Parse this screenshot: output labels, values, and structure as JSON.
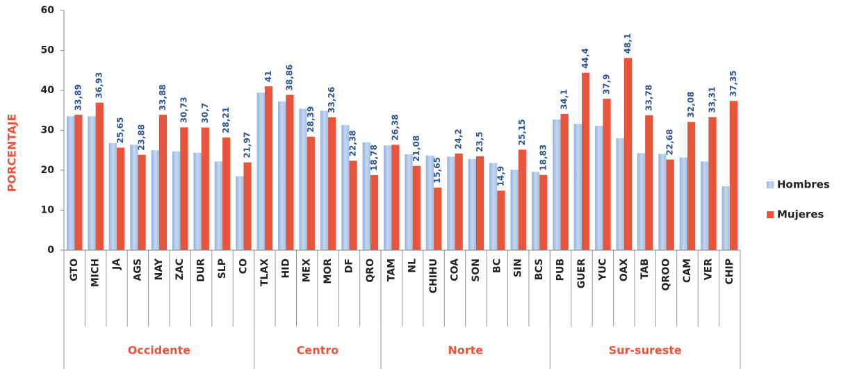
{
  "chart_data": {
    "type": "bar",
    "y_label": "PORCENTAJE",
    "groups": [
      {
        "name": "Occidente",
        "categories": [
          "GTO",
          "MICH",
          "JA",
          "AGS",
          "NAY",
          "ZAC",
          "DUR",
          "SLP",
          "CO"
        ]
      },
      {
        "name": "Centro",
        "categories": [
          "TLAX",
          "HID",
          "MEX",
          "MOR",
          "DF",
          "QRO"
        ]
      },
      {
        "name": "Norte",
        "categories": [
          "TAM",
          "NL",
          "CHIHU",
          "COA",
          "SON",
          "BC",
          "SIN",
          "BCS"
        ]
      },
      {
        "name": "Sur-sureste",
        "categories": [
          "PUB",
          "GUER",
          "YUC",
          "OAX",
          "TAB",
          "QROO",
          "CAM",
          "VER",
          "CHIP"
        ]
      }
    ],
    "series": [
      {
        "name": "Hombres",
        "color": "#a9c4e8",
        "values": [
          33.5,
          33.5,
          26.8,
          26.4,
          25,
          24.7,
          24.4,
          22.2,
          18.5,
          39.4,
          37.2,
          35.4,
          34.9,
          31.3,
          27,
          26.2,
          24,
          23.7,
          23.4,
          22.8,
          21.8,
          20.1,
          19.6,
          32.7,
          31.6,
          31.1,
          28,
          24.3,
          24.1,
          23.2,
          22.2,
          16
        ]
      },
      {
        "name": "Mujeres",
        "color": "#e8553a",
        "values": [
          33.89,
          36.93,
          25.65,
          23.88,
          33.88,
          30.73,
          30.7,
          28.21,
          21.97,
          41,
          38.86,
          28.39,
          33.26,
          22.38,
          18.78,
          26.38,
          21.08,
          15.65,
          24.2,
          23.5,
          14.9,
          25.15,
          18.83,
          34.1,
          44.4,
          37.9,
          48.1,
          33.78,
          22.68,
          32.08,
          33.31,
          37.35
        ],
        "value_labels": [
          "33,89",
          "36,93",
          "25,65",
          "23,88",
          "33,88",
          "30,73",
          "30,7",
          "28,21",
          "21,97",
          "41",
          "38,86",
          "28,39",
          "33,26",
          "22,38",
          "18,78",
          "26,38",
          "21,08",
          "15,65",
          "24,2",
          "23,5",
          "14,9",
          "25,15",
          "18,83",
          "34,1",
          "44,4",
          "37,9",
          "48,1",
          "33,78",
          "22,68",
          "32,08",
          "33,31",
          "37,35"
        ]
      }
    ],
    "ylim": [
      0,
      60
    ],
    "yticks": [
      0,
      10,
      20,
      30,
      40,
      50,
      60
    ],
    "legend": "right"
  }
}
